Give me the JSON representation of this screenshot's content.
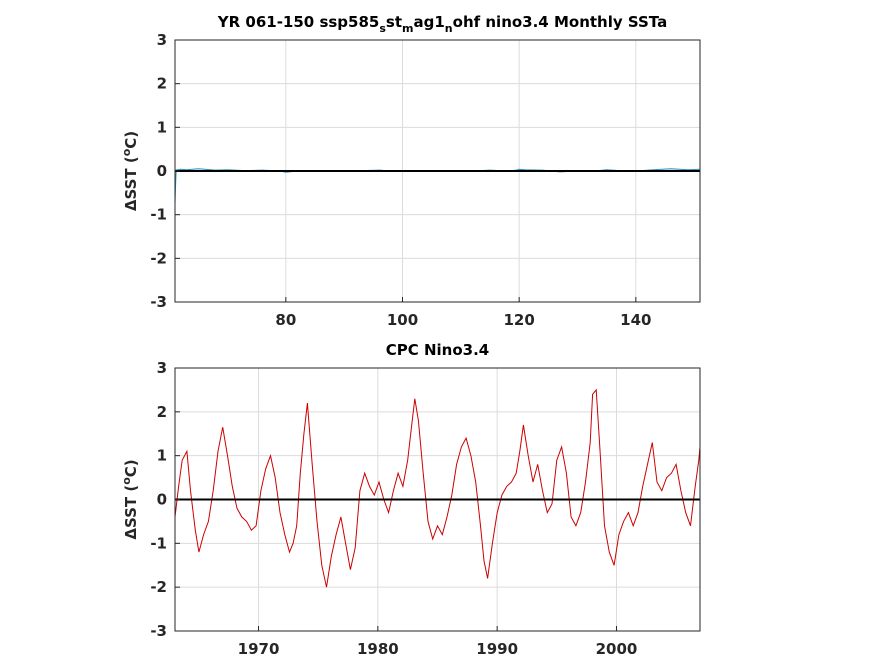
{
  "chart_data": [
    {
      "type": "line",
      "title_parts": [
        "YR 061-150 ssp585",
        "s",
        "st",
        "m",
        "ag1",
        "n",
        "ohf nino3.4 Monthly SSTa"
      ],
      "xlabel": "",
      "ylabel": "ΔSST (°C)",
      "ylabel_parts": [
        "ΔSST (",
        "o",
        "C)"
      ],
      "xlim": [
        61,
        151
      ],
      "ylim": [
        -3,
        3
      ],
      "xticks": [
        80,
        100,
        120,
        140
      ],
      "yticks": [
        -3,
        -2,
        -1,
        0,
        1,
        2,
        3
      ],
      "grid": true,
      "zero_line": true,
      "series": [
        {
          "color": "#2a8fb8",
          "x": [
            61,
            61.1,
            61.2,
            62,
            63,
            65,
            68,
            70,
            73,
            76,
            79,
            80,
            82,
            85,
            88,
            90,
            93,
            96,
            99,
            100,
            103,
            106,
            109,
            112,
            115,
            118,
            119.5,
            120,
            121,
            124,
            127,
            130,
            133,
            135,
            136,
            138,
            140,
            143,
            146,
            149,
            151
          ],
          "y": [
            -0.75,
            -0.3,
            0.02,
            0.04,
            0.03,
            0.05,
            0.02,
            0.03,
            0.01,
            0.02,
            0.0,
            -0.03,
            0.0,
            0.01,
            0.0,
            0.0,
            0.01,
            0.02,
            -0.01,
            0.0,
            0.01,
            0.0,
            0.01,
            0.0,
            0.02,
            0.0,
            0.02,
            0.04,
            0.03,
            0.02,
            -0.02,
            0.0,
            0.0,
            0.03,
            0.02,
            0.0,
            0.0,
            0.03,
            0.05,
            0.03,
            0.04
          ]
        }
      ]
    },
    {
      "type": "line",
      "title": "CPC Nino3.4",
      "xlabel": "",
      "ylabel": "ΔSST (°C)",
      "ylabel_parts": [
        "ΔSST (",
        "o",
        "C)"
      ],
      "xlim": [
        1963,
        2007
      ],
      "ylim": [
        -3,
        3
      ],
      "xticks": [
        1970,
        1980,
        1990,
        2000
      ],
      "yticks": [
        -3,
        -2,
        -1,
        0,
        1,
        2,
        3
      ],
      "grid": true,
      "zero_line": true,
      "series": [
        {
          "color": "#cc0000",
          "x": [
            1963.0,
            1963.3,
            1963.6,
            1964.0,
            1964.3,
            1964.7,
            1965.0,
            1965.4,
            1965.8,
            1966.2,
            1966.6,
            1967.0,
            1967.4,
            1967.8,
            1968.2,
            1968.6,
            1969.0,
            1969.4,
            1969.8,
            1970.2,
            1970.6,
            1971.0,
            1971.4,
            1971.8,
            1972.2,
            1972.6,
            1972.9,
            1973.2,
            1973.5,
            1973.8,
            1974.1,
            1974.5,
            1974.9,
            1975.3,
            1975.7,
            1976.1,
            1976.5,
            1976.9,
            1977.3,
            1977.7,
            1978.1,
            1978.5,
            1978.9,
            1979.3,
            1979.7,
            1980.1,
            1980.5,
            1980.9,
            1981.3,
            1981.7,
            1982.1,
            1982.5,
            1982.8,
            1983.1,
            1983.4,
            1983.8,
            1984.2,
            1984.6,
            1985.0,
            1985.4,
            1985.8,
            1986.2,
            1986.6,
            1987.0,
            1987.4,
            1987.8,
            1988.2,
            1988.6,
            1988.9,
            1989.2,
            1989.6,
            1990.0,
            1990.4,
            1990.8,
            1991.2,
            1991.6,
            1991.9,
            1992.2,
            1992.6,
            1993.0,
            1993.4,
            1993.8,
            1994.2,
            1994.6,
            1995.0,
            1995.4,
            1995.8,
            1996.2,
            1996.6,
            1997.0,
            1997.4,
            1997.8,
            1998.0,
            1998.3,
            1998.6,
            1999.0,
            1999.4,
            1999.8,
            2000.2,
            2000.6,
            2001.0,
            2001.4,
            2001.8,
            2002.2,
            2002.6,
            2003.0,
            2003.4,
            2003.8,
            2004.2,
            2004.6,
            2005.0,
            2005.4,
            2005.8,
            2006.2,
            2006.6,
            2006.9,
            2007.0
          ],
          "y": [
            -0.4,
            0.3,
            0.9,
            1.1,
            0.2,
            -0.7,
            -1.2,
            -0.8,
            -0.5,
            0.2,
            1.1,
            1.65,
            1.0,
            0.3,
            -0.2,
            -0.4,
            -0.5,
            -0.7,
            -0.6,
            0.2,
            0.7,
            1.0,
            0.5,
            -0.3,
            -0.8,
            -1.2,
            -1.0,
            -0.6,
            0.6,
            1.5,
            2.2,
            0.8,
            -0.5,
            -1.5,
            -2.0,
            -1.3,
            -0.8,
            -0.4,
            -1.0,
            -1.6,
            -1.1,
            0.2,
            0.6,
            0.3,
            0.1,
            0.4,
            0.0,
            -0.3,
            0.2,
            0.6,
            0.3,
            0.9,
            1.6,
            2.3,
            1.8,
            0.6,
            -0.5,
            -0.9,
            -0.6,
            -0.8,
            -0.4,
            0.1,
            0.8,
            1.2,
            1.4,
            1.0,
            0.4,
            -0.6,
            -1.4,
            -1.8,
            -1.0,
            -0.3,
            0.1,
            0.3,
            0.4,
            0.6,
            1.1,
            1.7,
            1.0,
            0.4,
            0.8,
            0.2,
            -0.3,
            -0.1,
            0.9,
            1.2,
            0.6,
            -0.4,
            -0.6,
            -0.3,
            0.4,
            1.3,
            2.4,
            2.5,
            1.2,
            -0.6,
            -1.2,
            -1.5,
            -0.8,
            -0.5,
            -0.3,
            -0.6,
            -0.3,
            0.3,
            0.8,
            1.3,
            0.4,
            0.2,
            0.5,
            0.6,
            0.8,
            0.2,
            -0.3,
            -0.6,
            0.3,
            0.9,
            1.2
          ]
        }
      ]
    }
  ]
}
